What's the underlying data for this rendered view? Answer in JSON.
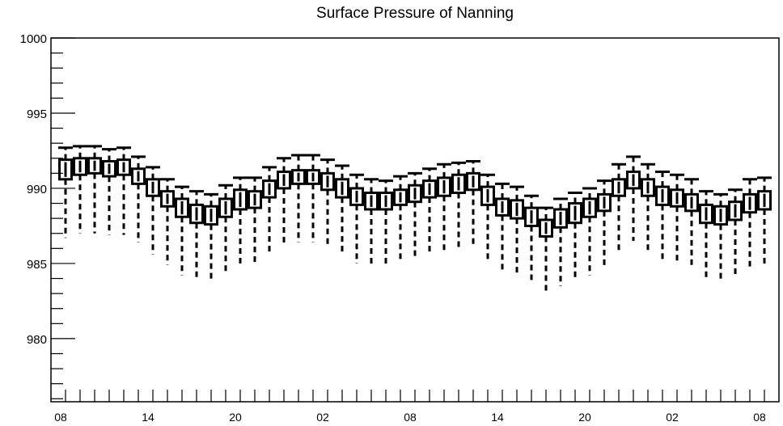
{
  "chart_data": {
    "type": "boxplot",
    "title": "Surface Pressure of Nanning",
    "xlabel": "",
    "ylabel": "",
    "ylim": [
      975.8,
      1000
    ],
    "yticks": [
      980,
      985,
      990,
      995,
      1000
    ],
    "xticks": [
      {
        "index": 0,
        "label": "08"
      },
      {
        "index": 6,
        "label": "14"
      },
      {
        "index": 12,
        "label": "20"
      },
      {
        "index": 18,
        "label": "02"
      },
      {
        "index": 24,
        "label": "08"
      },
      {
        "index": 30,
        "label": "14"
      },
      {
        "index": 36,
        "label": "20"
      },
      {
        "index": 42,
        "label": "02"
      },
      {
        "index": 48,
        "label": "08"
      }
    ],
    "median": [
      991.3,
      991.5,
      991.6,
      991.3,
      991.4,
      990.8,
      990.0,
      989.3,
      988.8,
      988.4,
      988.3,
      988.8,
      989.3,
      989.3,
      990.0,
      990.6,
      990.8,
      990.8,
      990.5,
      990.1,
      989.5,
      989.2,
      989.2,
      989.4,
      989.7,
      990.0,
      990.2,
      990.3,
      990.5,
      989.5,
      988.8,
      988.7,
      988.2,
      987.4,
      988.0,
      988.4,
      988.7,
      989.1,
      990.1,
      990.6,
      990.1,
      989.6,
      989.4,
      989.1,
      988.4,
      988.3,
      988.6,
      989.1,
      989.3
    ],
    "q1": [
      990.6,
      990.9,
      991.0,
      990.8,
      990.9,
      990.3,
      989.5,
      988.8,
      988.1,
      987.7,
      987.6,
      988.1,
      988.6,
      988.7,
      989.4,
      990.0,
      990.3,
      990.3,
      989.9,
      989.4,
      988.9,
      988.6,
      988.6,
      988.9,
      989.1,
      989.4,
      989.5,
      989.7,
      989.9,
      988.9,
      988.2,
      988.0,
      987.5,
      986.8,
      987.4,
      987.7,
      988.1,
      988.5,
      989.5,
      990.0,
      989.5,
      988.9,
      988.8,
      988.5,
      987.7,
      987.6,
      987.9,
      988.4,
      988.6
    ],
    "q3": [
      991.9,
      992.0,
      992.0,
      991.8,
      991.9,
      991.3,
      990.6,
      989.8,
      989.3,
      988.9,
      988.8,
      989.3,
      989.9,
      989.8,
      990.5,
      991.1,
      991.2,
      991.2,
      991.0,
      990.6,
      990.0,
      989.7,
      989.7,
      989.9,
      990.2,
      990.5,
      990.7,
      990.9,
      991.0,
      990.1,
      989.3,
      989.2,
      988.7,
      987.9,
      988.6,
      989.0,
      989.3,
      989.6,
      990.6,
      991.1,
      990.6,
      990.1,
      989.9,
      989.6,
      988.9,
      988.8,
      989.1,
      989.6,
      989.8
    ],
    "whisker_low": [
      986.7,
      987.0,
      987.0,
      986.9,
      986.9,
      986.4,
      985.6,
      984.9,
      984.2,
      984.1,
      983.8,
      984.5,
      985.0,
      985.0,
      985.7,
      986.3,
      986.4,
      986.4,
      986.1,
      985.7,
      985.0,
      984.8,
      984.9,
      985.1,
      985.3,
      985.6,
      985.9,
      986.0,
      986.2,
      985.2,
      984.6,
      984.4,
      983.9,
      983.1,
      983.5,
      984.0,
      984.2,
      984.8,
      985.9,
      986.5,
      985.8,
      985.3,
      985.2,
      984.9,
      983.9,
      983.8,
      984.1,
      984.8,
      984.9
    ],
    "whisker_high": [
      992.7,
      992.8,
      992.8,
      992.6,
      992.7,
      992.1,
      991.4,
      990.6,
      990.1,
      989.8,
      989.6,
      990.2,
      990.7,
      990.7,
      991.4,
      992.0,
      992.2,
      992.2,
      991.9,
      991.5,
      990.9,
      990.6,
      990.5,
      990.8,
      991.0,
      991.3,
      991.6,
      991.7,
      991.8,
      990.9,
      990.3,
      990.1,
      989.5,
      988.7,
      989.3,
      989.7,
      990.0,
      990.5,
      991.6,
      992.1,
      991.6,
      991.1,
      990.9,
      990.6,
      989.8,
      989.6,
      989.9,
      990.6,
      990.7
    ]
  }
}
